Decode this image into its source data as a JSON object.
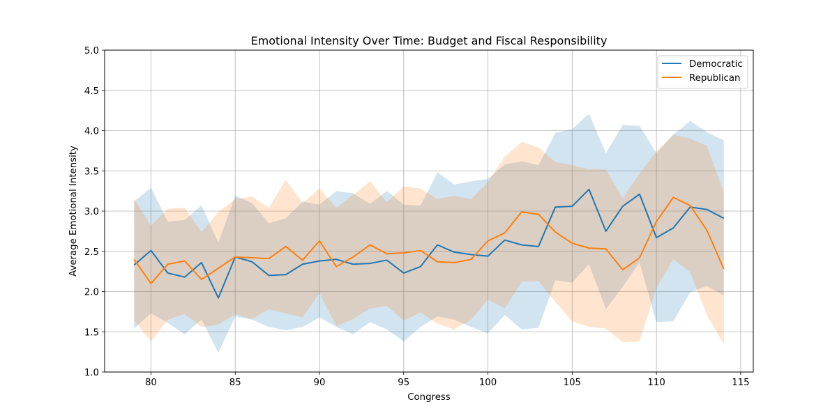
{
  "chart_data": {
    "type": "line",
    "title": "Emotional Intensity Over Time: Budget and Fiscal Responsibility",
    "xlabel": "Congress",
    "ylabel": "Average Emotional Intensity",
    "xlim": [
      77.25,
      115.75
    ],
    "ylim": [
      1.0,
      5.0
    ],
    "xticks": [
      80,
      85,
      90,
      95,
      100,
      105,
      110,
      115
    ],
    "yticks": [
      1.0,
      1.5,
      2.0,
      2.5,
      3.0,
      3.5,
      4.0,
      4.5,
      5.0
    ],
    "grid": true,
    "legend_position": "upper right",
    "x": [
      79,
      80,
      81,
      82,
      83,
      84,
      85,
      86,
      87,
      88,
      89,
      90,
      91,
      92,
      93,
      94,
      95,
      96,
      97,
      98,
      99,
      100,
      101,
      102,
      103,
      104,
      105,
      106,
      107,
      108,
      109,
      110,
      111,
      112,
      113,
      114
    ],
    "series": [
      {
        "name": "Democratic",
        "color": "#1f77b4",
        "band_color": "#1f77b4",
        "values": [
          2.33,
          2.51,
          2.23,
          2.18,
          2.36,
          1.92,
          2.43,
          2.37,
          2.2,
          2.21,
          2.34,
          2.38,
          2.4,
          2.34,
          2.35,
          2.39,
          2.23,
          2.31,
          2.58,
          2.49,
          2.46,
          2.44,
          2.64,
          2.58,
          2.56,
          3.05,
          3.06,
          3.27,
          2.75,
          3.06,
          3.21,
          2.67,
          2.79,
          3.05,
          3.02,
          2.91
        ],
        "upper": [
          3.12,
          3.29,
          2.87,
          2.89,
          3.07,
          2.61,
          3.19,
          3.1,
          2.85,
          2.91,
          3.12,
          3.08,
          3.25,
          3.22,
          3.09,
          3.25,
          3.08,
          3.07,
          3.48,
          3.33,
          3.37,
          3.4,
          3.58,
          3.62,
          3.57,
          3.97,
          4.02,
          4.21,
          3.72,
          4.07,
          4.06,
          3.72,
          3.95,
          4.12,
          3.98,
          3.88
        ],
        "lower": [
          1.54,
          1.73,
          1.61,
          1.47,
          1.65,
          1.24,
          1.69,
          1.65,
          1.56,
          1.52,
          1.56,
          1.68,
          1.56,
          1.47,
          1.62,
          1.53,
          1.38,
          1.56,
          1.69,
          1.65,
          1.56,
          1.48,
          1.71,
          1.53,
          1.55,
          2.14,
          2.11,
          2.34,
          1.78,
          2.06,
          2.36,
          1.62,
          1.63,
          1.99,
          2.07,
          1.95
        ]
      },
      {
        "name": "Republican",
        "color": "#ff7f0e",
        "band_color": "#ff7f0e",
        "values": [
          2.4,
          2.1,
          2.34,
          2.38,
          2.15,
          2.29,
          2.43,
          2.42,
          2.41,
          2.56,
          2.39,
          2.63,
          2.31,
          2.43,
          2.58,
          2.47,
          2.48,
          2.51,
          2.37,
          2.36,
          2.4,
          2.63,
          2.73,
          2.99,
          2.96,
          2.74,
          2.6,
          2.54,
          2.53,
          2.27,
          2.42,
          2.87,
          3.17,
          3.07,
          2.76,
          2.28
        ],
        "upper": [
          3.15,
          2.82,
          3.03,
          3.04,
          2.74,
          2.99,
          3.15,
          3.18,
          3.04,
          3.39,
          3.1,
          3.28,
          3.04,
          3.2,
          3.37,
          3.11,
          3.31,
          3.28,
          3.15,
          3.19,
          3.15,
          3.36,
          3.68,
          3.86,
          3.79,
          3.61,
          3.57,
          3.52,
          3.52,
          3.16,
          3.47,
          3.74,
          3.95,
          3.9,
          3.81,
          3.23
        ],
        "lower": [
          1.64,
          1.38,
          1.65,
          1.72,
          1.56,
          1.59,
          1.72,
          1.66,
          1.78,
          1.73,
          1.68,
          1.98,
          1.57,
          1.66,
          1.79,
          1.82,
          1.64,
          1.74,
          1.6,
          1.53,
          1.65,
          1.9,
          1.79,
          2.12,
          2.13,
          1.87,
          1.63,
          1.56,
          1.54,
          1.37,
          1.38,
          2.05,
          2.4,
          2.24,
          1.71,
          1.34
        ]
      }
    ]
  }
}
